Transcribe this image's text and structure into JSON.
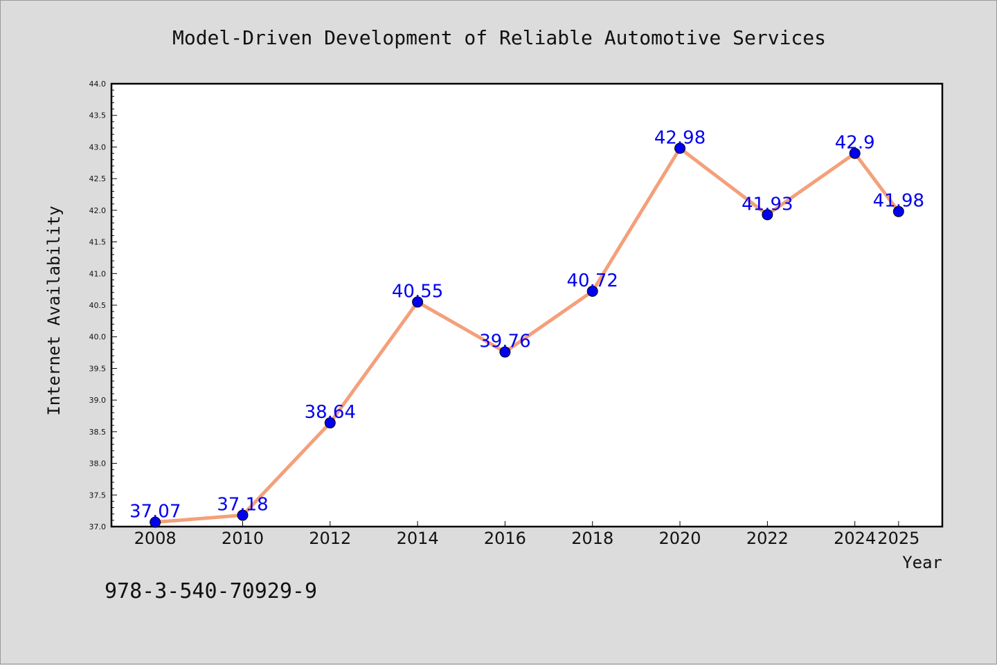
{
  "chart_data": {
    "type": "line",
    "title": "Model-Driven Development of Reliable Automotive Services",
    "xlabel": "Year",
    "ylabel": "Internet Availability",
    "x": [
      2008,
      2010,
      2012,
      2014,
      2016,
      2018,
      2020,
      2022,
      2024,
      2025
    ],
    "xtick_labels": [
      "2008",
      "2010",
      "2012",
      "2014",
      "2016",
      "2018",
      "2020",
      "2022",
      "2024",
      "2025"
    ],
    "series": [
      {
        "values": [
          37.07,
          37.18,
          38.64,
          40.55,
          39.76,
          40.72,
          42.98,
          41.93,
          42.9,
          41.98
        ],
        "data_labels": [
          "37.07",
          "37.18",
          "38.64",
          "40.55",
          "39.76",
          "40.72",
          "42.98",
          "41.93",
          "42.9",
          "41.98"
        ]
      }
    ],
    "ylim": [
      37.0,
      44.0
    ],
    "ytick_labels": [
      "37.0",
      "37.5",
      "38.0",
      "38.5",
      "39.0",
      "39.5",
      "40.0",
      "40.5",
      "41.0",
      "41.5",
      "42.0",
      "42.5",
      "43.0",
      "43.5",
      "44.0"
    ],
    "grid": false,
    "legend": "none",
    "colors": {
      "line": "#f4a07a",
      "marker": "#0000ee",
      "label": "#0000ee",
      "background": "#dcdcdc",
      "plot_area": "#ffffff"
    }
  },
  "footer": {
    "isbn": "978-3-540-70929-9"
  }
}
